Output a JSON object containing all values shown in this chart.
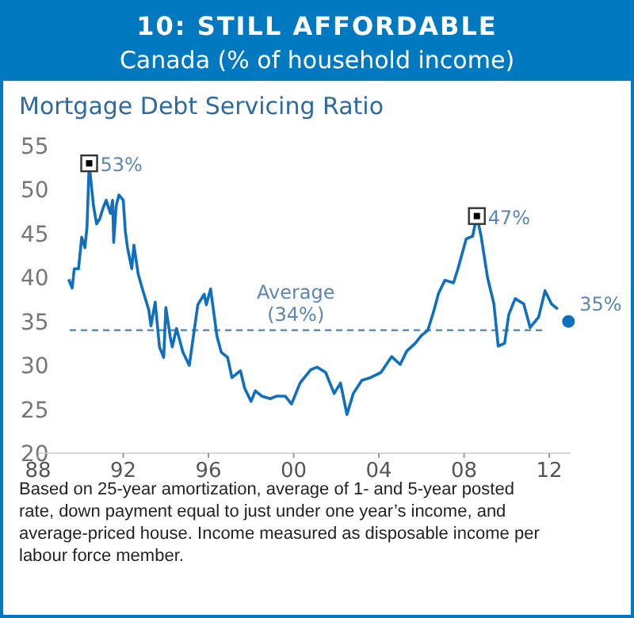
{
  "chart_data": {
    "type": "line",
    "title": "10: STILL AFFORDABLE",
    "subtitle": "Canada (% of household income)",
    "ylabel": "Mortgage Debt Servicing Ratio",
    "xlim": [
      1988,
      2013
    ],
    "ylim": [
      20,
      55
    ],
    "xticks": [
      {
        "value": 1988,
        "label": "88"
      },
      {
        "value": 1992,
        "label": "92"
      },
      {
        "value": 1996,
        "label": "96"
      },
      {
        "value": 2000,
        "label": "00"
      },
      {
        "value": 2004,
        "label": "04"
      },
      {
        "value": 2008,
        "label": "08"
      },
      {
        "value": 2012,
        "label": "12"
      }
    ],
    "yticks": [
      20,
      25,
      30,
      35,
      40,
      45,
      50,
      55
    ],
    "grid": false,
    "series": [
      {
        "color": "#1170be",
        "line_style": "solid",
        "x": [
          1989.44,
          1989.6,
          1989.7,
          1989.9,
          1990.05,
          1990.2,
          1990.3,
          1990.4,
          1990.6,
          1990.75,
          1990.9,
          1991.05,
          1991.2,
          1991.4,
          1991.5,
          1991.55,
          1991.67,
          1991.8,
          1992.0,
          1992.1,
          1992.2,
          1992.4,
          1992.5,
          1992.7,
          1992.9,
          1993.2,
          1993.3,
          1993.5,
          1993.7,
          1993.9,
          1994.0,
          1994.2,
          1994.3,
          1994.5,
          1994.8,
          1995.1,
          1995.5,
          1995.8,
          1995.9,
          1996.1,
          1996.4,
          1996.6,
          1996.9,
          1997.1,
          1997.5,
          1997.7,
          1998.0,
          1998.2,
          1998.5,
          1998.9,
          1999.2,
          1999.6,
          1999.9,
          2000.3,
          2000.8,
          2001.1,
          2001.5,
          2001.9,
          2002.2,
          2002.5,
          2002.8,
          2003.2,
          2003.6,
          2004.1,
          2004.6,
          2005.0,
          2005.3,
          2005.7,
          2006.0,
          2006.3,
          2006.6,
          2006.8,
          2007.1,
          2007.5,
          2007.7,
          2008.1,
          2008.4,
          2008.6,
          2008.8,
          2009.1,
          2009.4,
          2009.6,
          2009.9,
          2010.1,
          2010.4,
          2010.8,
          2011.1,
          2011.5,
          2011.8,
          2012.1,
          2012.4
        ],
        "values": [
          39.8,
          38.8,
          41.0,
          41.0,
          44.6,
          43.4,
          45.8,
          53,
          48.2,
          46.1,
          46.7,
          47.9,
          48.8,
          47.3,
          48.8,
          44.0,
          48.2,
          49.4,
          48.8,
          45.2,
          43.4,
          41.0,
          43.7,
          40.4,
          38.7,
          36.3,
          34.5,
          37.2,
          32.1,
          30.9,
          36.6,
          33.3,
          32.1,
          34.2,
          31.5,
          30.0,
          36.9,
          38.1,
          36.9,
          38.7,
          33.3,
          31.5,
          30.9,
          28.6,
          29.4,
          27.4,
          25.9,
          27.1,
          26.5,
          26.2,
          26.5,
          26.5,
          25.6,
          28.0,
          29.5,
          29.8,
          29.2,
          26.8,
          28.0,
          24.4,
          26.8,
          28.3,
          28.6,
          29.2,
          31.0,
          30.1,
          31.6,
          32.5,
          33.4,
          34.0,
          36.4,
          38.2,
          39.7,
          39.4,
          40.9,
          44.4,
          44.7,
          47,
          44.7,
          40.0,
          37.0,
          32.2,
          32.5,
          35.8,
          37.6,
          37.0,
          34.3,
          35.5,
          38.5,
          37.0,
          36.4
        ]
      },
      {
        "type": "scatter",
        "color": "#000000",
        "marker": "square",
        "x": [
          1990.4,
          2008.6
        ],
        "values": [
          53,
          47
        ],
        "value_labels": [
          "53%",
          "47%"
        ]
      },
      {
        "type": "scatter",
        "color": "#1170be",
        "marker": "circle",
        "x": [
          2012.9
        ],
        "values": [
          35
        ],
        "value_labels": [
          "35%"
        ]
      }
    ],
    "ref_lines": [
      {
        "axis": "y",
        "value": 34,
        "label": "Average (34%)",
        "color": "#5a8fc0",
        "line_style": "dashed"
      }
    ],
    "annotations": [
      "Based on 25-year amortization, average of 1- and 5-year posted rate, down payment equal to just under one year’s income, and average-priced house. Income measured as disposable income per labour force member."
    ]
  }
}
